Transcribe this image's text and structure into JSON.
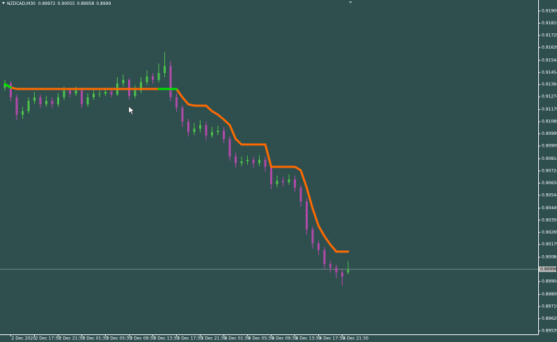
{
  "chart_data": {
    "type": "candlestick",
    "title": "NZDCAD,M30",
    "categories": [
      null,
      "2 Dec 2020",
      null,
      null,
      null,
      "2 Dec 17:30",
      null,
      null,
      null,
      "2 Dec 21:30",
      null,
      null,
      null,
      "3 Dec 01:30",
      null,
      null,
      null,
      "3 Dec 05:30",
      null,
      null,
      null,
      "3 Dec 09:30",
      null,
      null,
      null,
      "3 Dec 13:30",
      null,
      null,
      null,
      "3 Dec 17:30",
      null,
      null,
      null,
      "3 Dec 21:30",
      null,
      null,
      null,
      "4 Dec 01:30",
      null,
      null,
      null,
      "4 Dec 05:30",
      null,
      null,
      null,
      "4 Dec 09:30",
      null,
      null,
      null,
      "4 Dec 13:30",
      null,
      null,
      null,
      "4 Dec 17:30",
      null,
      null,
      null,
      "4 Dec 21:30",
      null
    ],
    "open": [
      0.9134,
      0.91373,
      0.9127,
      0.91141,
      0.91167,
      0.91244,
      0.9127,
      0.91218,
      0.91244,
      0.91218,
      0.9127,
      0.91321,
      0.91296,
      0.91321,
      0.91218,
      0.9127,
      0.91296,
      0.91296,
      0.91311,
      0.91291,
      0.91373,
      0.91399,
      0.9128,
      0.91321,
      0.91383,
      0.91425,
      0.91399,
      0.9145,
      0.91502,
      0.9127,
      0.91193,
      0.9109,
      0.91012,
      0.91038,
      0.91064,
      0.90987,
      0.91012,
      0.91023,
      0.90961,
      0.90832,
      0.90781,
      0.90796,
      0.90806,
      0.90781,
      0.90806,
      0.90755,
      0.90626,
      0.90652,
      0.90641,
      0.90662,
      0.906,
      0.90497,
      0.90291,
      0.90188,
      0.90137,
      0.90034,
      0.90008,
      0.89972,
      0.89972
    ],
    "high": [
      0.914,
      0.9139,
      0.9129,
      0.912,
      0.9127,
      0.9131,
      0.9129,
      0.9128,
      0.9127,
      0.913,
      0.9135,
      0.9134,
      0.9135,
      0.9134,
      0.913,
      0.9133,
      0.9132,
      0.9134,
      0.9133,
      0.9142,
      0.9144,
      0.9141,
      0.9136,
      0.9142,
      0.9147,
      0.9145,
      0.9152,
      0.91605,
      0.9154,
      0.913,
      0.9121,
      0.9111,
      0.9108,
      0.911,
      0.9109,
      0.9105,
      0.9106,
      0.9105,
      0.9098,
      0.9086,
      0.9083,
      0.9084,
      0.9083,
      0.9084,
      0.9083,
      0.9077,
      0.9069,
      0.9068,
      0.907,
      0.9069,
      0.9062,
      0.9052,
      0.9031,
      0.9021,
      0.9016,
      0.9006,
      0.9003,
      0.8999,
      0.90055
    ],
    "low": [
      0.9132,
      0.9124,
      0.911,
      0.9111,
      0.9115,
      0.9122,
      0.9119,
      0.912,
      0.9119,
      0.912,
      0.9125,
      0.9127,
      0.9128,
      0.9119,
      0.912,
      0.9125,
      0.9127,
      0.9128,
      0.9127,
      0.9128,
      0.9135,
      0.9125,
      0.9126,
      0.913,
      0.9136,
      0.9137,
      0.9138,
      0.9142,
      0.9124,
      0.9116,
      0.9105,
      0.9098,
      0.9099,
      0.9101,
      0.9095,
      0.9097,
      0.9099,
      0.9093,
      0.908,
      0.9075,
      0.9076,
      0.9077,
      0.9075,
      0.9076,
      0.9072,
      0.9059,
      0.906,
      0.9061,
      0.9062,
      0.9057,
      0.9046,
      0.9025,
      0.9015,
      0.901,
      0.9,
      0.8997,
      0.8993,
      0.89874,
      0.89958
    ],
    "close": [
      0.91373,
      0.9127,
      0.91141,
      0.91167,
      0.91244,
      0.9127,
      0.91218,
      0.91244,
      0.91218,
      0.9127,
      0.91321,
      0.91296,
      0.91321,
      0.91218,
      0.9127,
      0.91296,
      0.91296,
      0.91311,
      0.91291,
      0.91373,
      0.91399,
      0.9128,
      0.91321,
      0.91383,
      0.91425,
      0.91399,
      0.9145,
      0.91502,
      0.9127,
      0.91193,
      0.9109,
      0.91012,
      0.91038,
      0.91064,
      0.90987,
      0.91012,
      0.91023,
      0.90961,
      0.90832,
      0.90781,
      0.90796,
      0.90806,
      0.90781,
      0.90806,
      0.90755,
      0.90626,
      0.90652,
      0.90641,
      0.90662,
      0.906,
      0.90497,
      0.90291,
      0.90188,
      0.90137,
      0.90034,
      0.90008,
      0.89972,
      0.89941,
      0.8999
    ],
    "up_color": "#4cc24c",
    "down_color": "#b04aa8",
    "background": "#2f4f4f",
    "indicator": {
      "color": "#ff6a00",
      "values": [
        0.91368,
        0.91342,
        0.91332,
        0.91332,
        0.91332,
        0.91332,
        0.91332,
        0.91332,
        0.91332,
        0.91332,
        0.91332,
        0.91332,
        0.91332,
        0.91332,
        0.91332,
        0.91332,
        0.91332,
        0.91332,
        0.91332,
        0.91332,
        0.91332,
        0.91332,
        0.91332,
        0.91332,
        0.91332,
        0.91332,
        0.91332,
        0.91332,
        0.91332,
        0.91332,
        0.9127,
        0.91218,
        0.91208,
        0.91208,
        0.91208,
        0.91167,
        0.91141,
        0.91105,
        0.91064,
        0.90961,
        0.9092,
        0.9092,
        0.9092,
        0.9092,
        0.9092,
        0.90755,
        0.90755,
        0.90755,
        0.90755,
        0.90755,
        0.90729,
        0.906,
        0.90446,
        0.90317,
        0.9024,
        0.90178,
        0.90126,
        0.90126,
        0.90126
      ]
    },
    "indicator_highlight": {
      "color": "#00e000",
      "values": [
        0.91368,
        0.91342,
        null,
        null,
        null,
        null,
        null,
        null,
        null,
        null,
        null,
        null,
        null,
        null,
        null,
        null,
        null,
        null,
        null,
        null,
        null,
        null,
        null,
        null,
        null,
        null,
        0.91332,
        0.91332,
        0.91332,
        0.91332,
        null,
        null,
        null,
        null,
        null,
        null,
        null,
        null,
        null,
        null,
        null,
        null,
        null,
        null,
        null,
        null,
        null,
        null,
        null,
        null,
        null,
        null,
        null,
        null,
        null,
        null,
        null,
        null,
        null
      ]
    },
    "bid": 0.89996,
    "ylim": [
      0.89513,
      0.9195
    ],
    "yticks": [
      0.91909,
      0.91819,
      0.91729,
      0.91639,
      0.91544,
      0.91454,
      0.91364,
      0.91274,
      0.91179,
      0.91089,
      0.90999,
      0.90909,
      0.90814,
      0.90724,
      0.90634,
      0.90544,
      0.90449,
      0.90359,
      0.90269,
      0.90179,
      0.90084,
      0.89904,
      0.89809,
      0.89719,
      0.89629,
      0.89539
    ],
    "grid": false
  }
}
